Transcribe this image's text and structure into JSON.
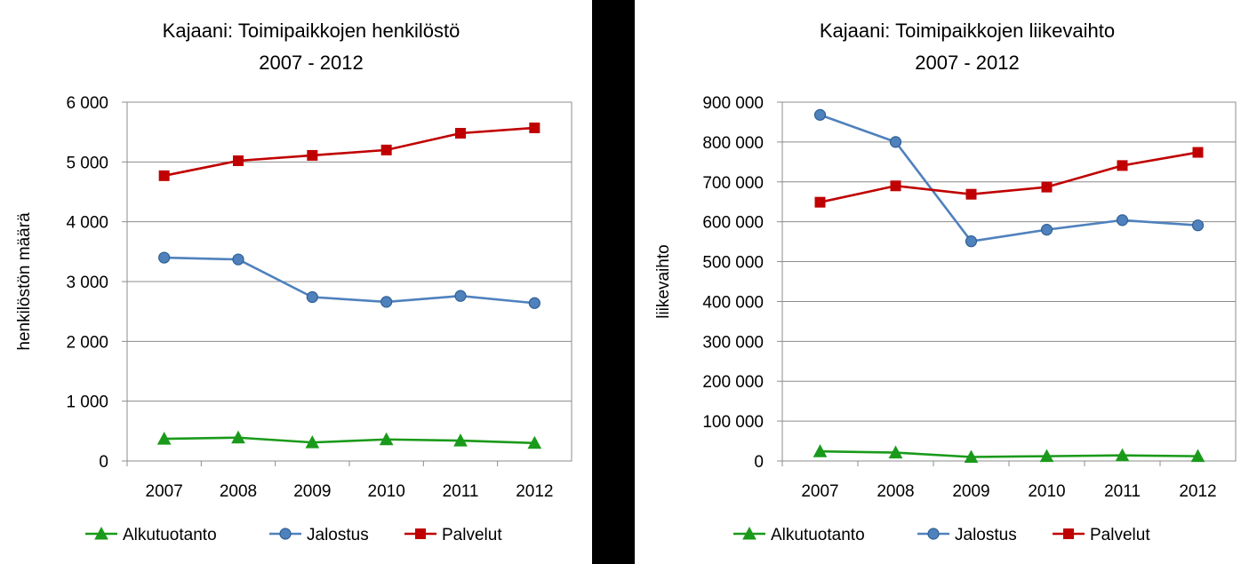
{
  "colors": {
    "Alkutuotanto": "#1a9a1a",
    "Jalostus": "#4f81bd",
    "Palvelut": "#c00000",
    "divider": "#000000",
    "grid": "#8c8c8c"
  },
  "chart_data": [
    {
      "type": "line",
      "title_line1": "Kajaani: Toimipaikkojen henkilöstö",
      "title_line2": "2007 - 2012",
      "xlabel": "",
      "ylabel": "henkilöstön määrä",
      "x": [
        "2007",
        "2008",
        "2009",
        "2010",
        "2011",
        "2012"
      ],
      "ylim": [
        0,
        6000
      ],
      "yticks": [
        0,
        1000,
        2000,
        3000,
        4000,
        5000,
        6000
      ],
      "ytick_labels": [
        "0",
        "1 000",
        "2 000",
        "3 000",
        "4 000",
        "5 000",
        "6 000"
      ],
      "grid": true,
      "legend_position": "bottom",
      "series": [
        {
          "name": "Alkutuotanto",
          "marker": "triangle",
          "values": [
            370,
            390,
            310,
            360,
            340,
            300
          ]
        },
        {
          "name": "Jalostus",
          "marker": "circle",
          "values": [
            3400,
            3370,
            2740,
            2660,
            2760,
            2640
          ]
        },
        {
          "name": "Palvelut",
          "marker": "square",
          "values": [
            4770,
            5020,
            5110,
            5200,
            5480,
            5570
          ]
        }
      ]
    },
    {
      "type": "line",
      "title_line1": "Kajaani: Toimipaikkojen liikevaihto",
      "title_line2": "2007 - 2012",
      "xlabel": "",
      "ylabel": "liikevaihto",
      "x": [
        "2007",
        "2008",
        "2009",
        "2010",
        "2011",
        "2012"
      ],
      "ylim": [
        0,
        900000
      ],
      "yticks": [
        0,
        100000,
        200000,
        300000,
        400000,
        500000,
        600000,
        700000,
        800000,
        900000
      ],
      "ytick_labels": [
        "0",
        "100 000",
        "200 000",
        "300 000",
        "400 000",
        "500 000",
        "600 000",
        "700 000",
        "800 000",
        "900 000"
      ],
      "grid": true,
      "legend_position": "bottom",
      "series": [
        {
          "name": "Alkutuotanto",
          "marker": "triangle",
          "values": [
            24000,
            21000,
            10000,
            12000,
            14000,
            12000
          ]
        },
        {
          "name": "Jalostus",
          "marker": "circle",
          "values": [
            868000,
            800000,
            551000,
            580000,
            604000,
            591000
          ]
        },
        {
          "name": "Palvelut",
          "marker": "square",
          "values": [
            649000,
            690000,
            669000,
            687000,
            741000,
            774000
          ]
        }
      ]
    }
  ]
}
